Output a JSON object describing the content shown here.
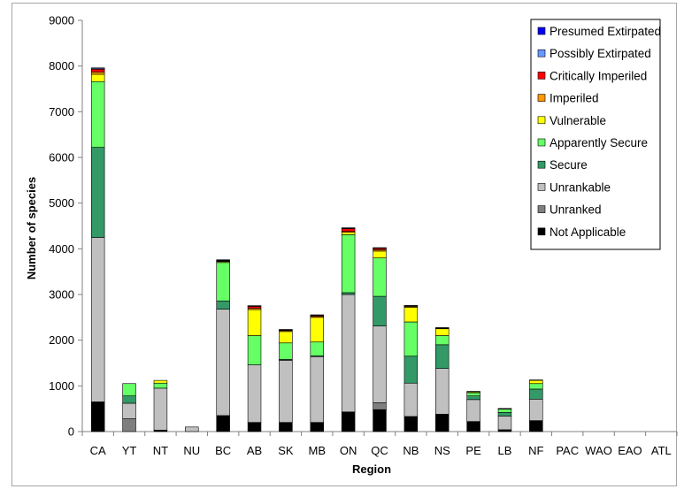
{
  "chart_data": {
    "type": "bar",
    "stacked": true,
    "xlabel": "Region",
    "ylabel": "Number of species",
    "ylim": [
      0,
      9000
    ],
    "ytick_step": 1000,
    "grid": false,
    "legend_position": "top-right",
    "categories": [
      "CA",
      "YT",
      "NT",
      "NU",
      "BC",
      "AB",
      "SK",
      "MB",
      "ON",
      "QC",
      "NB",
      "NS",
      "PE",
      "LB",
      "NF",
      "PAC",
      "WAO",
      "EAO",
      "ATL"
    ],
    "series": [
      {
        "name": "Not Applicable",
        "color": "#000000",
        "values": [
          650,
          0,
          30,
          0,
          350,
          200,
          200,
          200,
          430,
          480,
          330,
          380,
          220,
          40,
          240,
          0,
          0,
          0,
          0
        ]
      },
      {
        "name": "Unranked",
        "color": "#7f7f7f",
        "values": [
          0,
          280,
          0,
          0,
          0,
          0,
          0,
          0,
          0,
          150,
          0,
          0,
          0,
          0,
          0,
          0,
          0,
          0,
          0
        ]
      },
      {
        "name": "Unrankable",
        "color": "#c0c0c0",
        "values": [
          3600,
          340,
          920,
          100,
          2330,
          1260,
          1360,
          1440,
          2570,
          1680,
          730,
          1000,
          480,
          300,
          470,
          0,
          0,
          0,
          0
        ]
      },
      {
        "name": "Secure",
        "color": "#339966",
        "values": [
          1970,
          160,
          0,
          0,
          180,
          0,
          20,
          20,
          40,
          650,
          590,
          520,
          80,
          80,
          220,
          0,
          0,
          0,
          0
        ]
      },
      {
        "name": "Apparently Secure",
        "color": "#66ff66",
        "values": [
          1440,
          270,
          110,
          0,
          840,
          640,
          360,
          300,
          1270,
          840,
          750,
          200,
          70,
          70,
          120,
          0,
          0,
          0,
          0
        ]
      },
      {
        "name": "Vulnerable",
        "color": "#ffff00",
        "values": [
          160,
          0,
          60,
          0,
          20,
          570,
          250,
          540,
          50,
          150,
          320,
          150,
          20,
          10,
          70,
          0,
          0,
          0,
          0
        ]
      },
      {
        "name": "Imperiled",
        "color": "#ff9900",
        "values": [
          50,
          0,
          0,
          0,
          10,
          30,
          20,
          20,
          20,
          30,
          20,
          10,
          10,
          5,
          10,
          0,
          0,
          0,
          0
        ]
      },
      {
        "name": "Critically Imperiled",
        "color": "#ff0000",
        "values": [
          60,
          0,
          0,
          0,
          10,
          40,
          10,
          20,
          60,
          30,
          10,
          10,
          0,
          0,
          0,
          0,
          0,
          0,
          0
        ]
      },
      {
        "name": "Possibly Extirpated",
        "color": "#6699ff",
        "values": [
          20,
          0,
          0,
          0,
          10,
          10,
          10,
          10,
          10,
          10,
          5,
          5,
          0,
          0,
          0,
          0,
          0,
          0,
          0
        ]
      },
      {
        "name": "Presumed Extirpated",
        "color": "#0000ff",
        "values": [
          10,
          0,
          0,
          0,
          10,
          5,
          5,
          5,
          10,
          5,
          5,
          0,
          0,
          0,
          0,
          0,
          0,
          0,
          0
        ]
      }
    ]
  }
}
